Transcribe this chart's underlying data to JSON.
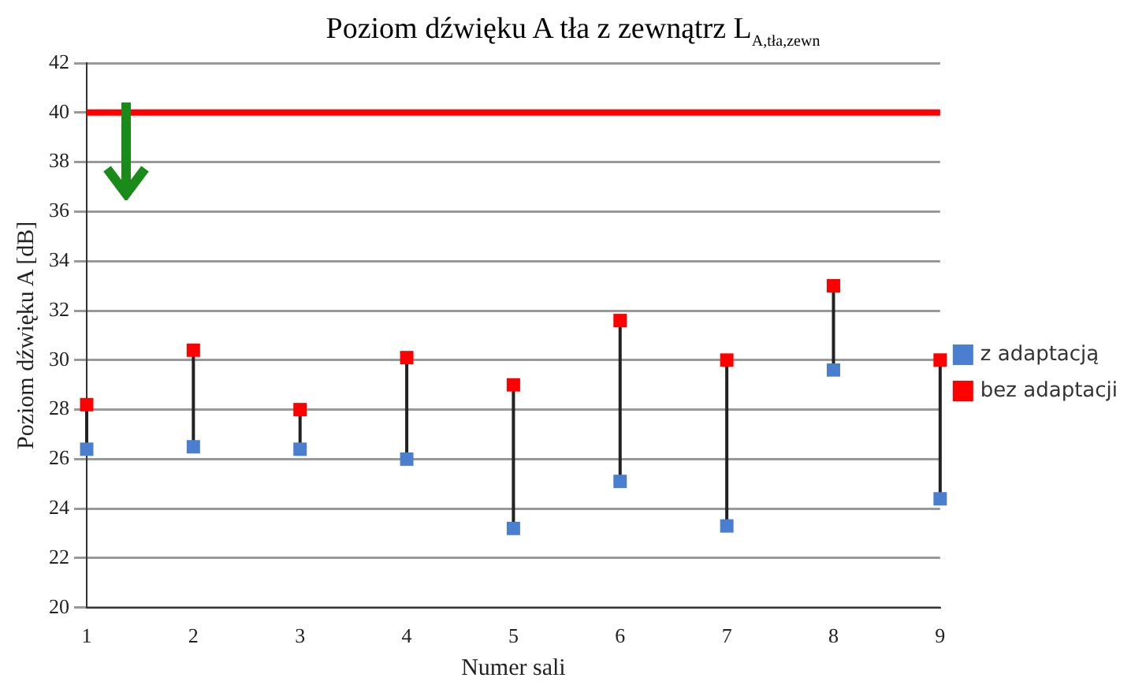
{
  "chart_data": {
    "type": "scatter",
    "title": "Poziom dźwięku A tła z zewnątrz L$_{A,tła,zewn}$",
    "xlabel": "Numer sali",
    "ylabel": "Poziom dźwięku A [dB]",
    "categories": [
      "1",
      "2",
      "3",
      "4",
      "5",
      "6",
      "7",
      "8",
      "9"
    ],
    "series": [
      {
        "name": "z adaptacją",
        "color": "#4a7fd0",
        "values": [
          26.4,
          26.5,
          26.4,
          26.0,
          23.2,
          25.1,
          23.3,
          29.6,
          24.4
        ]
      },
      {
        "name": "bez adaptacji",
        "color": "#ff0000",
        "values": [
          28.2,
          30.4,
          28.0,
          30.1,
          29.0,
          31.6,
          30.0,
          33.0,
          30.0
        ]
      }
    ],
    "ylim": [
      20,
      42
    ],
    "yticks": [
      20,
      22,
      24,
      26,
      28,
      30,
      32,
      34,
      36,
      38,
      40,
      42
    ],
    "ref_lines": [
      {
        "axis": "y",
        "value": 40,
        "color": "#ff0000"
      }
    ],
    "grid": "y",
    "legend": "right",
    "marker": "square"
  }
}
